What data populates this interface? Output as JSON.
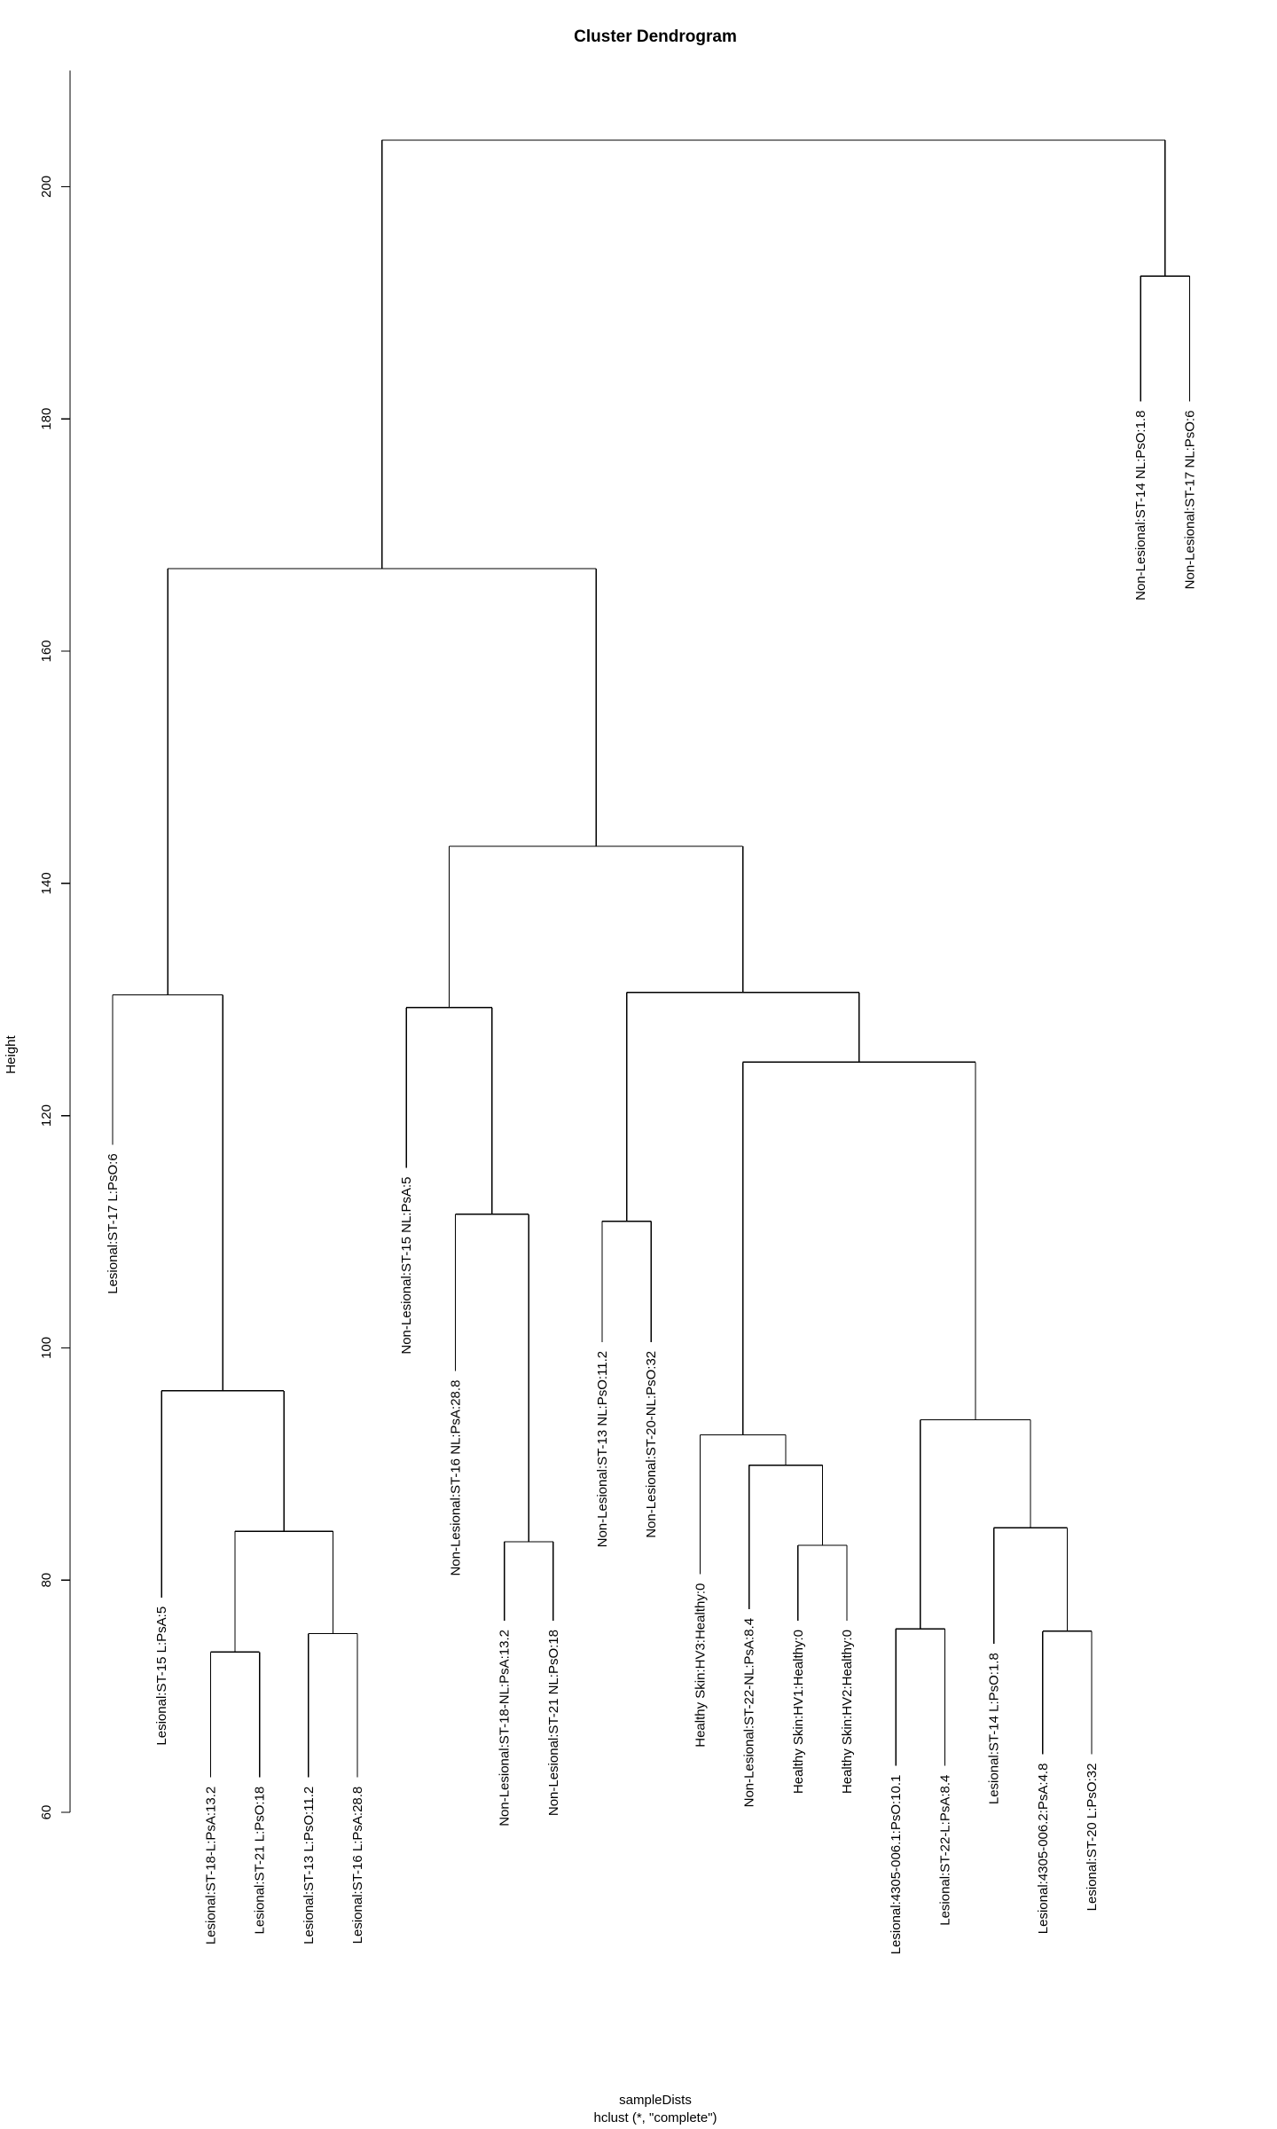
{
  "chart_data": {
    "type": "dendrogram",
    "title": "Cluster Dendrogram",
    "ylabel": "Height",
    "xlabel": "sampleDists",
    "sublabel": "hclust (*, \"complete\")",
    "y_ticks": [
      60,
      80,
      100,
      120,
      140,
      160,
      180,
      200
    ],
    "ylim": [
      60,
      210
    ],
    "leaves": [
      "Lesional:ST-17 L:PsO:6",
      "Lesional:ST-15 L:PsA:5",
      "Lesional:ST-18-L:PsA:13.2",
      "Lesional:ST-21 L:PsO:18",
      "Lesional:ST-13 L:PsO:11.2",
      "Lesional:ST-16 L:PsA:28.8",
      "Non-Lesional:ST-15 NL:PsA:5",
      "Non-Lesional:ST-16 NL:PsA:28.8",
      "Non-Lesional:ST-18-NL:PsA:13.2",
      "Non-Lesional:ST-21 NL:PsO:18",
      "Non-Lesional:ST-13 NL:PsO:11.2",
      "Non-Lesional:ST-20-NL:PsO:32",
      "Healthy Skin:HV3:Healthy:0",
      "Non-Lesional:ST-22-NL:PsA:8.4",
      "Healthy Skin:HV1:Healthy:0",
      "Healthy Skin:HV2:Healthy:0",
      "Lesional:4305-006.1:PsO:10.1",
      "Lesional:ST-22-L:PsA:8.4",
      "Lesional:ST-14 L:PsO:1.8",
      "Lesional:4305-006.2:PsA:4.8",
      "Lesional:ST-20 L:PsO:32",
      "Non-Lesional:ST-14 NL:PsO:1.8",
      "Non-Lesional:ST-17 NL:PsO:6"
    ],
    "leaf_top_height": [
      117.5,
      78.5,
      63,
      63,
      63,
      63,
      115.5,
      98,
      76.5,
      76.5,
      100.5,
      100.5,
      80.5,
      77.5,
      76.5,
      76.5,
      64,
      64,
      74.5,
      65,
      65,
      181.5,
      181.5
    ],
    "merges": [
      {
        "id": "m1",
        "left": "L2",
        "right": "L3",
        "height": 73.8
      },
      {
        "id": "m2",
        "left": "L4",
        "right": "L5",
        "height": 75.4
      },
      {
        "id": "m3",
        "left": "m1",
        "right": "m2",
        "height": 84.2
      },
      {
        "id": "m4",
        "left": "L1",
        "right": "m3",
        "height": 96.3
      },
      {
        "id": "m5",
        "left": "L0",
        "right": "m4",
        "height": 130.4
      },
      {
        "id": "m6",
        "left": "L8",
        "right": "L9",
        "height": 83.3
      },
      {
        "id": "m7",
        "left": "L7",
        "right": "m6",
        "height": 111.5
      },
      {
        "id": "m8",
        "left": "L6",
        "right": "m7",
        "height": 129.3
      },
      {
        "id": "m9",
        "left": "L10",
        "right": "L11",
        "height": 110.9
      },
      {
        "id": "m10",
        "left": "L14",
        "right": "L15",
        "height": 83.0
      },
      {
        "id": "m11",
        "left": "L13",
        "right": "m10",
        "height": 89.9
      },
      {
        "id": "m12",
        "left": "L12",
        "right": "m11",
        "height": 92.5
      },
      {
        "id": "m13",
        "left": "L16",
        "right": "L17",
        "height": 75.8
      },
      {
        "id": "m14",
        "left": "L19",
        "right": "L20",
        "height": 75.6
      },
      {
        "id": "m15",
        "left": "L18",
        "right": "m14",
        "height": 84.5
      },
      {
        "id": "m16",
        "left": "m13",
        "right": "m15",
        "height": 93.8
      },
      {
        "id": "m17",
        "left": "m12",
        "right": "m16",
        "height": 124.6
      },
      {
        "id": "m18",
        "left": "m9",
        "right": "m17",
        "height": 130.6
      },
      {
        "id": "m19",
        "left": "m8",
        "right": "m18",
        "height": 143.2
      },
      {
        "id": "m20",
        "left": "m5",
        "right": "m19",
        "height": 167.1
      },
      {
        "id": "m21",
        "left": "L21",
        "right": "L22",
        "height": 192.3
      },
      {
        "id": "m22",
        "left": "m20",
        "right": "m21",
        "height": 204.0
      }
    ]
  }
}
